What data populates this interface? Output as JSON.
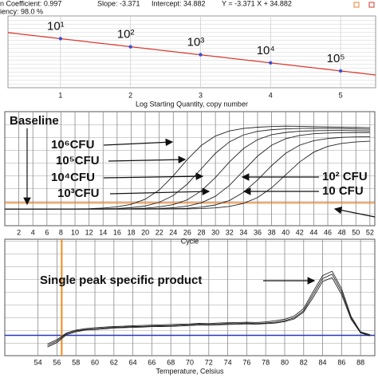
{
  "chart_data": [
    {
      "type": "scatter",
      "annotations": [
        "n Coefficient: 0.997",
        "Slope: -3.371",
        "Intercept: 34.882",
        "Y = -3.371 X + 34.882",
        "iency: 98.0 %"
      ],
      "x": [
        1,
        2,
        3,
        4,
        5
      ],
      "values": [
        31.5,
        28.1,
        24.8,
        21.4,
        18.0
      ],
      "point_labels": [
        "10¹",
        "10²",
        "10³",
        "10⁴",
        "10⁵"
      ],
      "fit": {
        "slope": -3.371,
        "intercept": 34.882
      },
      "xlabel": "Log Starting Quantity, copy number",
      "xlim": [
        0.25,
        5.5
      ],
      "ylim": [
        11,
        41
      ],
      "xticks": [
        1,
        2,
        3,
        4,
        5
      ],
      "color": "#3c4fd0",
      "fit_color": "#d9382c"
    },
    {
      "type": "line",
      "xlabel": "Cycle",
      "annotations": [
        "Baseline",
        "10⁶CFU",
        "10⁵CFU",
        "10⁴CFU",
        "10³CFU",
        "10² CFU",
        "10 CFU"
      ],
      "x": [
        0,
        2,
        4,
        6,
        8,
        10,
        12,
        14,
        16,
        18,
        20,
        22,
        24,
        26,
        28,
        30,
        32,
        34,
        36,
        38,
        40,
        42,
        44,
        46,
        48,
        50,
        52
      ],
      "series": [
        {
          "color": "#222222",
          "values": [
            6.0,
            6.0,
            6.0,
            6.0,
            6.1,
            6.2,
            6.4,
            7.0,
            8.2,
            10.6,
            15.5,
            24.5,
            38.1,
            53.9,
            67.5,
            76.5,
            81.4,
            83.8,
            85.0,
            85.6,
            86.0,
            85.8,
            85.5,
            85.2,
            85.0,
            84.8,
            84.5
          ]
        },
        {
          "color": "#222222",
          "values": [
            6.0,
            6.0,
            6.0,
            6.0,
            6.0,
            6.0,
            6.1,
            6.3,
            6.6,
            7.4,
            9.0,
            12.5,
            19.1,
            30.2,
            45.0,
            59.8,
            70.9,
            77.5,
            81.0,
            82.6,
            83.4,
            83.8,
            84.0,
            83.8,
            83.6,
            83.3,
            83.0
          ]
        },
        {
          "color": "#222222",
          "values": [
            6.0,
            6.0,
            6.0,
            6.0,
            6.0,
            6.0,
            6.0,
            6.0,
            6.2,
            6.4,
            6.9,
            8.1,
            10.3,
            15.0,
            23.6,
            36.5,
            51.5,
            64.4,
            73.0,
            77.7,
            79.9,
            81.1,
            81.6,
            81.8,
            81.8,
            81.6,
            81.4
          ]
        },
        {
          "color": "#222222",
          "values": [
            6.0,
            6.0,
            6.0,
            6.0,
            6.0,
            6.0,
            6.0,
            6.0,
            6.0,
            6.1,
            6.3,
            6.6,
            7.3,
            8.9,
            12.1,
            18.4,
            28.9,
            43.0,
            57.1,
            67.6,
            73.9,
            77.1,
            78.7,
            79.4,
            79.7,
            79.8,
            79.8
          ]
        },
        {
          "color": "#222222",
          "values": [
            6.0,
            6.0,
            6.0,
            6.0,
            6.0,
            6.0,
            6.0,
            6.0,
            6.0,
            6.0,
            6.0,
            6.2,
            6.4,
            6.8,
            7.9,
            10.0,
            14.3,
            22.2,
            34.1,
            47.9,
            59.8,
            67.7,
            72.0,
            74.1,
            75.2,
            75.6,
            75.8
          ]
        },
        {
          "color": "#222222",
          "values": [
            6.0,
            6.0,
            6.0,
            6.0,
            6.0,
            6.0,
            6.0,
            6.0,
            6.0,
            6.0,
            6.0,
            6.0,
            6.1,
            6.2,
            6.5,
            7.2,
            8.6,
            11.5,
            17.1,
            26.5,
            39.0,
            51.5,
            60.9,
            66.5,
            69.4,
            70.8,
            71.5
          ]
        }
      ],
      "xlim": [
        0,
        52.7
      ],
      "ylim": [
        -10,
        100
      ],
      "xticks": [
        2,
        4,
        6,
        8,
        10,
        12,
        14,
        16,
        18,
        20,
        22,
        24,
        26,
        28,
        30,
        32,
        34,
        36,
        38,
        40,
        42,
        44,
        46,
        48,
        50,
        52
      ],
      "threshold": 12,
      "threshold_color": "#e8822e"
    },
    {
      "type": "line",
      "xlabel": "Temperature, Celsius",
      "annotations": [
        "Single peak specific product"
      ],
      "x": [
        55,
        56,
        57,
        58,
        59,
        60,
        61,
        62,
        63,
        64,
        65,
        66,
        67,
        68,
        69,
        70,
        71,
        72,
        73,
        74,
        75,
        76,
        77,
        78,
        79,
        80,
        81,
        82,
        83,
        84,
        85,
        86,
        87,
        88,
        89
      ],
      "series": [
        {
          "color": "#222222",
          "values": [
            -0.35,
            -0.2,
            0.05,
            0.15,
            0.2,
            0.22,
            0.25,
            0.27,
            0.28,
            0.3,
            0.3,
            0.32,
            0.33,
            0.33,
            0.35,
            0.36,
            0.38,
            0.37,
            0.38,
            0.4,
            0.4,
            0.42,
            0.4,
            0.42,
            0.45,
            0.5,
            0.6,
            0.85,
            1.4,
            1.95,
            2.1,
            1.5,
            0.6,
            0.1,
            0.0
          ]
        },
        {
          "color": "#222222",
          "values": [
            -0.4,
            -0.25,
            0.02,
            0.12,
            0.18,
            0.2,
            0.22,
            0.25,
            0.26,
            0.27,
            0.28,
            0.3,
            0.3,
            0.31,
            0.32,
            0.34,
            0.35,
            0.35,
            0.36,
            0.37,
            0.38,
            0.39,
            0.38,
            0.4,
            0.42,
            0.47,
            0.56,
            0.8,
            1.3,
            1.85,
            1.98,
            1.4,
            0.55,
            0.08,
            -0.02
          ]
        },
        {
          "color": "#222222",
          "values": [
            -0.3,
            -0.15,
            0.08,
            0.18,
            0.23,
            0.26,
            0.28,
            0.3,
            0.31,
            0.33,
            0.34,
            0.35,
            0.36,
            0.37,
            0.38,
            0.39,
            0.41,
            0.4,
            0.42,
            0.43,
            0.44,
            0.45,
            0.44,
            0.46,
            0.5,
            0.55,
            0.66,
            0.92,
            1.5,
            2.05,
            2.2,
            1.6,
            0.65,
            0.12,
            0.02
          ]
        }
      ],
      "xlim": [
        50.5,
        89.5
      ],
      "ylim": [
        -0.7,
        3.3
      ],
      "xticks": [
        54,
        56,
        58,
        60,
        62,
        64,
        66,
        68,
        70,
        72,
        74,
        76,
        78,
        80,
        82,
        84,
        86,
        88
      ],
      "hline": 0,
      "hline_color": "#2638b8",
      "vline": 56.5,
      "vline_color": "#f08a1c"
    }
  ]
}
